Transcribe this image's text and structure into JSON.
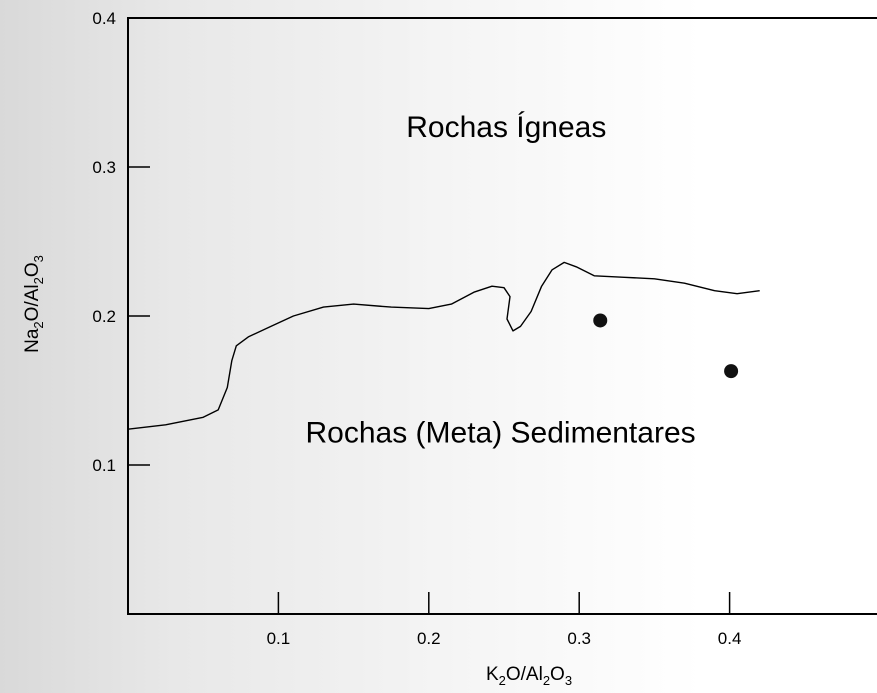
{
  "chart_data": {
    "type": "scatter",
    "xlim": [
      0,
      0.5
    ],
    "ylim": [
      0,
      0.4
    ],
    "x_ticks": [
      {
        "value": 0.1,
        "label": "0.1"
      },
      {
        "value": 0.2,
        "label": "0.2"
      },
      {
        "value": 0.3,
        "label": "0.3"
      },
      {
        "value": 0.4,
        "label": "0.4"
      }
    ],
    "y_ticks": [
      {
        "value": 0.1,
        "label": "0.1"
      },
      {
        "value": 0.2,
        "label": "0.2"
      },
      {
        "value": 0.3,
        "label": "0.3"
      },
      {
        "value": 0.4,
        "label": "0.4"
      }
    ],
    "xlabel": {
      "parts": [
        "K",
        "2",
        "O/Al",
        "2",
        "O",
        "3"
      ]
    },
    "ylabel": {
      "parts": [
        "Na",
        "2",
        "O/Al",
        "2",
        "O",
        "3"
      ]
    },
    "grid": false,
    "regions": [
      {
        "label": "Rochas Ígneas",
        "x": 0.185,
        "y": 0.32
      },
      {
        "label": "Rochas (Meta) Sedimentares",
        "x": 0.118,
        "y": 0.115
      }
    ],
    "boundary_line": [
      [
        0.0,
        0.124
      ],
      [
        0.025,
        0.127
      ],
      [
        0.05,
        0.132
      ],
      [
        0.06,
        0.137
      ],
      [
        0.066,
        0.152
      ],
      [
        0.069,
        0.17
      ],
      [
        0.072,
        0.18
      ],
      [
        0.08,
        0.186
      ],
      [
        0.095,
        0.193
      ],
      [
        0.11,
        0.2
      ],
      [
        0.13,
        0.206
      ],
      [
        0.15,
        0.208
      ],
      [
        0.175,
        0.206
      ],
      [
        0.2,
        0.205
      ],
      [
        0.215,
        0.208
      ],
      [
        0.23,
        0.216
      ],
      [
        0.242,
        0.22
      ],
      [
        0.25,
        0.219
      ],
      [
        0.254,
        0.213
      ],
      [
        0.252,
        0.198
      ],
      [
        0.256,
        0.19
      ],
      [
        0.261,
        0.193
      ],
      [
        0.268,
        0.203
      ],
      [
        0.275,
        0.22
      ],
      [
        0.282,
        0.231
      ],
      [
        0.29,
        0.236
      ],
      [
        0.298,
        0.233
      ],
      [
        0.31,
        0.227
      ],
      [
        0.33,
        0.226
      ],
      [
        0.35,
        0.225
      ],
      [
        0.37,
        0.222
      ],
      [
        0.39,
        0.217
      ],
      [
        0.405,
        0.215
      ],
      [
        0.42,
        0.217
      ]
    ],
    "points": [
      {
        "x": 0.314,
        "y": 0.197
      },
      {
        "x": 0.401,
        "y": 0.163
      }
    ]
  }
}
